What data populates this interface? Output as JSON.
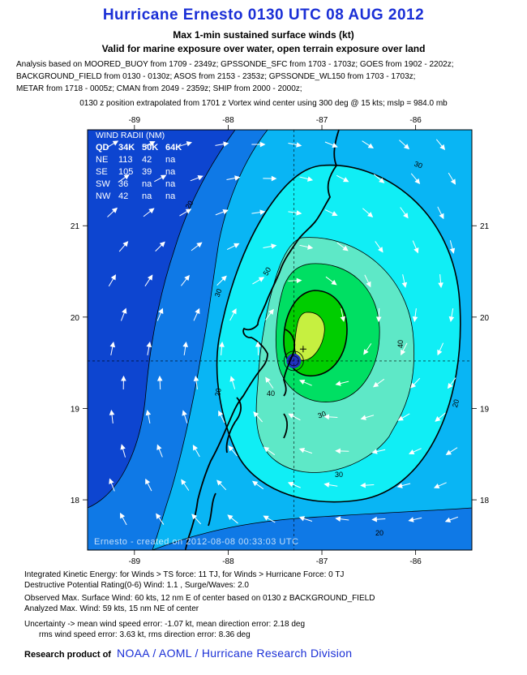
{
  "header": {
    "title": "Hurricane Ernesto 0130 UTC 08 AUG 2012",
    "subtitle1": "Max 1-min sustained surface winds (kt)",
    "subtitle2": "Valid for marine exposure over water, open terrain exposure over land",
    "analysis_lines": [
      "Analysis based on MOORED_BUOY from 1709 - 2349z; GPSSONDE_SFC from 1703 - 1703z; GOES from 1902 - 2202z;",
      "BACKGROUND_FIELD from 0130 - 0130z; ASOS from 2153 - 2353z; GPSSONDE_WL150 from 1703 - 1703z;",
      "METAR from 1718 - 0005z; CMAN from 2049 - 2359z; SHIP from 2000 - 2000z;"
    ],
    "extrapolation": "0130 z position extrapolated from 1701 z Vortex wind center using 300 deg @ 15 kts; mslp = 984.0 mb"
  },
  "chart_data": {
    "type": "heatmap",
    "x_ticks": [
      "-89",
      "-88",
      "-87",
      "-86"
    ],
    "y_ticks": [
      "21",
      "20",
      "19",
      "18"
    ],
    "xlim": [
      -89.5,
      -85.4
    ],
    "ylim": [
      17.45,
      22.05
    ],
    "center": {
      "lon": -87.3,
      "lat": 19.52
    },
    "max_wind_location": {
      "lon": -87.2,
      "lat": 19.65
    },
    "contour_labels": [
      "20",
      "30",
      "40",
      "50",
      "30",
      "40",
      "20",
      "30",
      "20",
      "30",
      "20"
    ],
    "watermark": "Ernesto - created on 2012-08-08 00:33:03 UTC",
    "colors": {
      "ring_0": "#0d45d0",
      "ring_1": "#0f79e6",
      "ring_2": "#09b5f4",
      "ring_3": "#10eef5",
      "ring_4": "#5ee8c7",
      "ring_5": "#00df63",
      "ring_6": "#00cd00",
      "ring_7": "#c6f040",
      "eye": "#2032c0"
    },
    "wind_radii": {
      "title": "WIND RADII (NM)",
      "header": [
        "QD",
        "34K",
        "50K",
        "64K"
      ],
      "rows": [
        [
          "NE",
          "113",
          "42",
          "na"
        ],
        [
          "SE",
          "105",
          "39",
          "na"
        ],
        [
          "SW",
          "36",
          "na",
          "na"
        ],
        [
          "NW",
          "42",
          "na",
          "na"
        ]
      ]
    }
  },
  "footer": {
    "ike": "Integrated Kinetic Energy: for Winds > TS force: 11 TJ, for Winds > Hurricane Force: 0 TJ",
    "destructive": "Destructive Potential Rating(0-6)   Wind: 1.1 , Surge/Waves: 2.0",
    "observed": "Observed Max. Surface Wind: 60 kts, 12 nm E of center based on 0130 z BACKGROUND_FIELD",
    "analyzed": "Analyzed Max. Wind: 59 kts, 15 nm  NE of center",
    "uncertainty1": "Uncertainty -> mean wind speed error:  -1.07 kt, mean direction error: 2.18 deg",
    "uncertainty2": "rms wind speed error: 3.63 kt, rms direction error: 8.36 deg",
    "research": "Research product of",
    "org": "NOAA / AOML / Hurricane Research Division"
  }
}
